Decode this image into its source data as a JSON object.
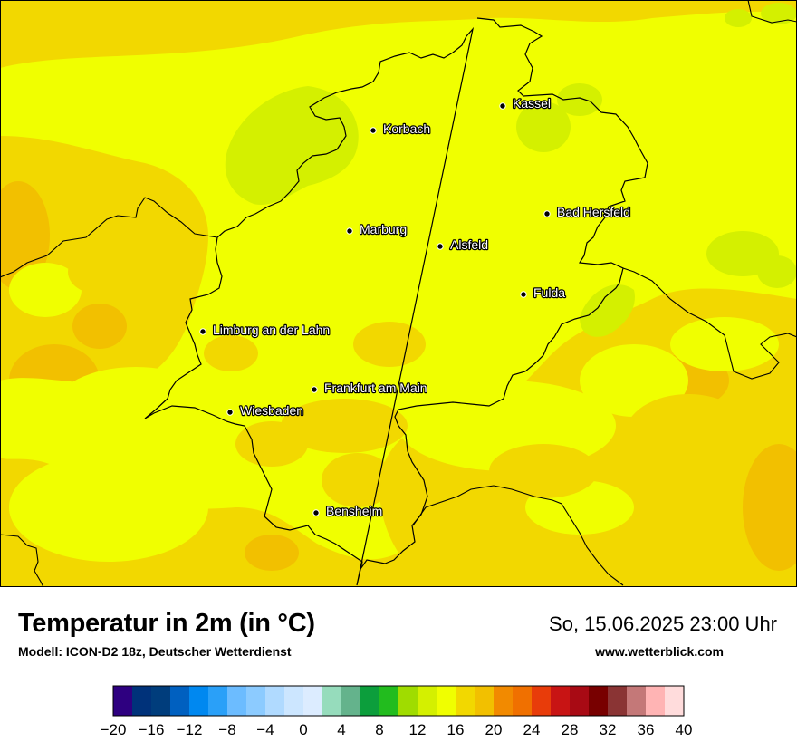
{
  "title": "Temperatur in 2m (in °C)",
  "model": "Modell: ICON-D2 18z, Deutscher Wetterdienst",
  "datetime": "So, 15.06.2025 23:00 Uhr",
  "website": "www.wetterblick.com",
  "colors": {
    "base_warm": "#f3d800",
    "yellow": "#f0ff00",
    "yellow_green": "#d4f000",
    "orange": "#f2c000",
    "border": "#000000",
    "city_dot": "#000000"
  },
  "cities": [
    {
      "name": "Kassel"
    },
    {
      "name": "Korbach"
    },
    {
      "name": "Bad Hersfeld"
    },
    {
      "name": "Marburg"
    },
    {
      "name": "Alsfeld"
    },
    {
      "name": "Fulda"
    },
    {
      "name": "Limburg an der Lahn"
    },
    {
      "name": "Frankfurt am Main"
    },
    {
      "name": "Wiesbaden"
    },
    {
      "name": "Bensheim"
    }
  ],
  "legend": {
    "min": -20,
    "max": 40,
    "step": 2,
    "tick_labels": [
      "−20",
      "−16",
      "−12",
      "−8",
      "−4",
      "0",
      "4",
      "8",
      "12",
      "16",
      "20",
      "24",
      "28",
      "32",
      "36",
      "40"
    ],
    "colors": [
      "#2e0080",
      "#00327a",
      "#003d7c",
      "#0060c0",
      "#0088f0",
      "#2aa0f8",
      "#6cbcff",
      "#8ccbff",
      "#b0daff",
      "#cce6ff",
      "#dcecff",
      "#96dcbc",
      "#64b38c",
      "#0c9e3c",
      "#22bc1e",
      "#a0dc00",
      "#d4f000",
      "#f0ff00",
      "#f2d800",
      "#f2c000",
      "#f28a00",
      "#f07000",
      "#e83c0a",
      "#c81414",
      "#a80a14",
      "#780000",
      "#8a3434",
      "#c47878",
      "#ffb4b4",
      "#ffdcdc"
    ]
  }
}
